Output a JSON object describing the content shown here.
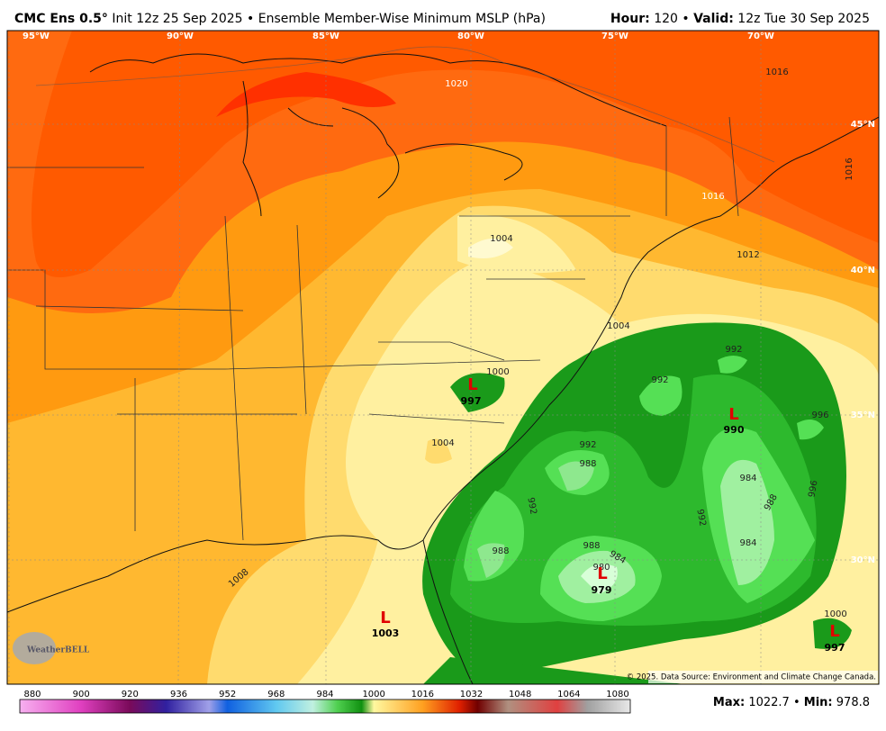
{
  "header": {
    "model": "CMC Ens 0.5°",
    "init": "Init 12z 25 Sep 2025",
    "separator": "•",
    "product": "Ensemble Member-Wise Minimum MSLP (hPa)",
    "hour_label": "Hour:",
    "hour": "120",
    "valid_label": "Valid:",
    "valid": "12z Tue 30 Sep 2025"
  },
  "longitudes": [
    "95°W",
    "90°W",
    "85°W",
    "80°W",
    "75°W",
    "70°W"
  ],
  "latitudes": [
    "45°N",
    "40°N",
    "35°N",
    "30°N"
  ],
  "contour_labels": [
    "1020",
    "1016",
    "1016",
    "1016",
    "1012",
    "1004",
    "1004",
    "1000",
    "992",
    "992",
    "996",
    "1004",
    "992",
    "988",
    "992",
    "984",
    "988",
    "996",
    "992",
    "988",
    "988",
    "984",
    "984",
    "980",
    "1008",
    "1000"
  ],
  "lows": [
    {
      "symbol": "L",
      "value": "997"
    },
    {
      "symbol": "L",
      "value": "990"
    },
    {
      "symbol": "L",
      "value": "979"
    },
    {
      "symbol": "L",
      "value": "1003"
    },
    {
      "symbol": "L",
      "value": "997"
    }
  ],
  "colorbar": {
    "ticks": [
      "880",
      "900",
      "920",
      "936",
      "952",
      "968",
      "984",
      "1000",
      "1016",
      "1032",
      "1048",
      "1064",
      "1080"
    ]
  },
  "footer": {
    "max_label": "Max:",
    "max": "1022.7",
    "min_label": "Min:",
    "min": "978.8",
    "copyright": "© 2025. Data Source: Environment and Climate Change Canada."
  },
  "logo": "WeatherBELL"
}
